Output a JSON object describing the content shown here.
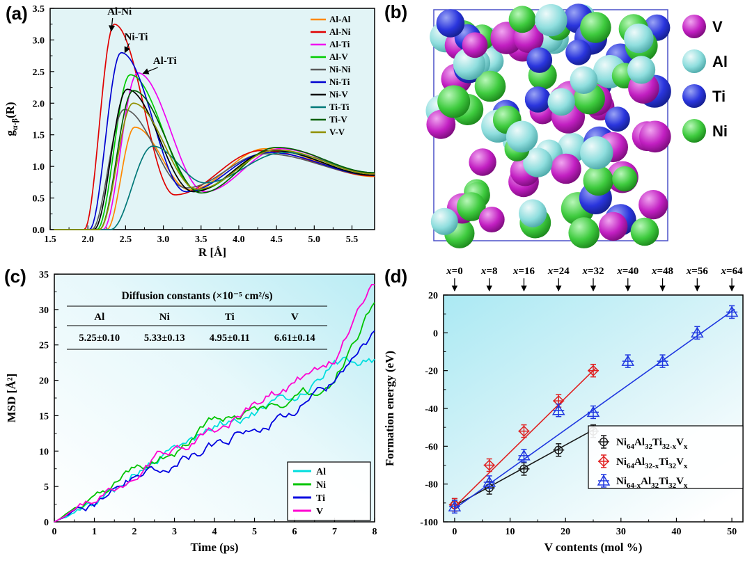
{
  "figure": {
    "panel_labels": {
      "a": "(a)",
      "b": "(b)",
      "c": "(c)",
      "d": "(d)"
    }
  },
  "chart_data": [
    {
      "panel": "a",
      "type": "line",
      "xlabel": "R [Å]",
      "ylabel_parts": [
        [
          "g",
          ""
        ],
        [
          "",
          "α-β"
        ],
        [
          "(R)",
          ""
        ]
      ],
      "xlim": [
        1.5,
        5.8
      ],
      "ylim": [
        0,
        3.5
      ],
      "xticks": [
        1.5,
        2.0,
        2.5,
        3.0,
        3.5,
        4.0,
        4.5,
        5.0,
        5.5
      ],
      "yticks": [
        0.0,
        0.5,
        1.0,
        1.5,
        2.0,
        2.5,
        3.0,
        3.5
      ],
      "annotations": [
        {
          "text": "Al-Ni",
          "tx": 2.42,
          "ty": 3.4,
          "ax": 2.31,
          "ay": 3.14
        },
        {
          "text": "Ni-Ti",
          "tx": 2.64,
          "ty": 3.0,
          "ax": 2.49,
          "ay": 2.8
        },
        {
          "text": "Al-Ti",
          "tx": 3.02,
          "ty": 2.62,
          "ax": 2.73,
          "ay": 2.47
        }
      ],
      "series": [
        {
          "name": "Al-Al",
          "color": "#ff8800",
          "anchors": [
            [
              2.25,
              0
            ],
            [
              2.62,
              1.62
            ],
            [
              3.35,
              0.63
            ],
            [
              4.35,
              1.28
            ],
            [
              5.8,
              0.84
            ]
          ]
        },
        {
          "name": "Al-Ni",
          "color": "#e00000",
          "anchors": [
            [
              1.95,
              0
            ],
            [
              2.35,
              3.25
            ],
            [
              3.15,
              0.55
            ],
            [
              4.3,
              1.25
            ],
            [
              5.8,
              0.85
            ]
          ]
        },
        {
          "name": "Al-Ti",
          "color": "#f000f0",
          "anchors": [
            [
              2.2,
              0
            ],
            [
              2.66,
              2.48
            ],
            [
              3.55,
              0.6
            ],
            [
              4.55,
              1.28
            ],
            [
              5.8,
              0.88
            ]
          ]
        },
        {
          "name": "Al-V",
          "color": "#00cc00",
          "anchors": [
            [
              2.12,
              0
            ],
            [
              2.56,
              2.45
            ],
            [
              3.45,
              0.62
            ],
            [
              4.45,
              1.25
            ],
            [
              5.8,
              0.86
            ]
          ]
        },
        {
          "name": "Ni-Ni",
          "color": "#5a5a5a",
          "anchors": [
            [
              2.05,
              0
            ],
            [
              2.48,
              1.9
            ],
            [
              3.3,
              0.66
            ],
            [
              4.35,
              1.2
            ],
            [
              5.8,
              0.86
            ]
          ]
        },
        {
          "name": "Ni-Ti",
          "color": "#0000d0",
          "anchors": [
            [
              2.02,
              0
            ],
            [
              2.44,
              2.8
            ],
            [
              3.3,
              0.6
            ],
            [
              4.4,
              1.22
            ],
            [
              5.8,
              0.86
            ]
          ]
        },
        {
          "name": "Ni-V",
          "color": "#000000",
          "anchors": [
            [
              2.08,
              0
            ],
            [
              2.52,
              2.22
            ],
            [
              3.4,
              0.6
            ],
            [
              4.45,
              1.25
            ],
            [
              5.8,
              0.86
            ]
          ]
        },
        {
          "name": "Ti-Ti",
          "color": "#007878",
          "anchors": [
            [
              2.3,
              0
            ],
            [
              2.86,
              1.32
            ],
            [
              3.55,
              0.74
            ],
            [
              4.6,
              1.22
            ],
            [
              5.8,
              0.9
            ]
          ]
        },
        {
          "name": "Ti-V",
          "color": "#005f00",
          "anchors": [
            [
              2.15,
              0
            ],
            [
              2.6,
              2.2
            ],
            [
              3.5,
              0.58
            ],
            [
              4.5,
              1.3
            ],
            [
              5.8,
              0.9
            ]
          ]
        },
        {
          "name": "V-V",
          "color": "#909000",
          "anchors": [
            [
              2.15,
              0
            ],
            [
              2.6,
              2.0
            ],
            [
              3.45,
              0.64
            ],
            [
              4.5,
              1.26
            ],
            [
              5.8,
              0.88
            ]
          ]
        }
      ]
    },
    {
      "panel": "b",
      "type": "atomic-structure",
      "legend": [
        {
          "label": "V",
          "species": "V",
          "color": "#c21fc2"
        },
        {
          "label": "Al",
          "species": "Al",
          "color": "#8fdede"
        },
        {
          "label": "Ti",
          "species": "Ti",
          "color": "#2a35dd"
        },
        {
          "label": "Ni",
          "species": "Ni",
          "color": "#3ecb3e"
        }
      ],
      "counts": {
        "V": 26,
        "Al": 24,
        "Ti": 18,
        "Ni": 27
      },
      "seed": 11
    },
    {
      "panel": "c",
      "type": "line",
      "xlabel": "Time (ps)",
      "ylabel": "MSD [Å²]",
      "xlim": [
        0,
        8
      ],
      "ylim": [
        0,
        35
      ],
      "xticks": [
        0,
        1,
        2,
        3,
        4,
        5,
        6,
        7,
        8
      ],
      "yticks": [
        0,
        5,
        10,
        15,
        20,
        25,
        30,
        35
      ],
      "table": {
        "title": "Diffusion constants (×10⁻⁵ cm²/s)",
        "headers": [
          "Al",
          "Ni",
          "Ti",
          "V"
        ],
        "values": [
          "5.25±0.10",
          "5.33±0.13",
          "4.95±0.11",
          "6.61±0.14"
        ]
      },
      "noise_seed": 5,
      "series": [
        {
          "name": "Al",
          "color": "#00dede",
          "anchors": [
            [
              0,
              0
            ],
            [
              1,
              2.5
            ],
            [
              2,
              7.0
            ],
            [
              3,
              10.0
            ],
            [
              4,
              13.5
            ],
            [
              5,
              15.5
            ],
            [
              6,
              17.5
            ],
            [
              7,
              22.5
            ],
            [
              8,
              23.0
            ]
          ]
        },
        {
          "name": "Ni",
          "color": "#00c400",
          "anchors": [
            [
              0,
              0
            ],
            [
              1,
              2.6
            ],
            [
              2,
              7.3
            ],
            [
              3,
              10.0
            ],
            [
              4,
              14.0
            ],
            [
              5,
              15.8
            ],
            [
              6,
              17.5
            ],
            [
              7,
              20.0
            ],
            [
              8,
              31.0
            ]
          ]
        },
        {
          "name": "Ti",
          "color": "#0000e0",
          "anchors": [
            [
              0,
              0
            ],
            [
              1,
              2.4
            ],
            [
              2,
              6.8
            ],
            [
              3,
              8.5
            ],
            [
              4,
              11.0
            ],
            [
              5,
              13.5
            ],
            [
              6,
              16.0
            ],
            [
              7,
              19.5
            ],
            [
              8,
              27.0
            ]
          ]
        },
        {
          "name": "V",
          "color": "#ff00d0",
          "anchors": [
            [
              0,
              0
            ],
            [
              1,
              2.5
            ],
            [
              2,
              7.0
            ],
            [
              3,
              10.5
            ],
            [
              4,
              13.2
            ],
            [
              5,
              16.5
            ],
            [
              6,
              19.5
            ],
            [
              7,
              23.0
            ],
            [
              8,
              33.5
            ]
          ]
        }
      ]
    },
    {
      "panel": "d",
      "type": "scatter",
      "xlabel": "V contents (mol %)",
      "ylabel": "Formation energy (eV)",
      "xlim": [
        -2,
        52
      ],
      "ylim": [
        -100,
        20
      ],
      "xticks": [
        0,
        10,
        20,
        30,
        40,
        50
      ],
      "yticks": [
        -100,
        -80,
        -60,
        -40,
        -20,
        0,
        20
      ],
      "top_labels": [
        {
          "label": "x=0",
          "mol": 0
        },
        {
          "label": "x=8",
          "mol": 6.25
        },
        {
          "label": "x=16",
          "mol": 12.5
        },
        {
          "label": "x=24",
          "mol": 18.75
        },
        {
          "label": "x=32",
          "mol": 25
        },
        {
          "label": "x=40",
          "mol": 31.25
        },
        {
          "label": "x=48",
          "mol": 37.5
        },
        {
          "label": "x=56",
          "mol": 43.75
        },
        {
          "label": "x=64",
          "mol": 50
        }
      ],
      "series": [
        {
          "label": "Ni64Al32Ti32-xVx",
          "label_parts": [
            [
              "Ni",
              "64"
            ],
            [
              "Al",
              "32"
            ],
            [
              "Ti",
              "32-x"
            ],
            [
              "V",
              "x"
            ]
          ],
          "color": "#1a1a1a",
          "marker": "circle",
          "x": [
            0,
            6.25,
            12.5,
            18.75,
            25
          ],
          "y": [
            -91,
            -82,
            -72,
            -62,
            -52
          ],
          "yerr": 2,
          "fit": [
            [
              0,
              -91.5
            ],
            [
              25.5,
              -50.5
            ]
          ]
        },
        {
          "label": "Ni64Al32-xTi32Vx",
          "label_parts": [
            [
              "Ni",
              "64"
            ],
            [
              "Al",
              "32-x"
            ],
            [
              "Ti",
              "32"
            ],
            [
              "V",
              "x"
            ]
          ],
          "color": "#e02020",
          "marker": "diamond",
          "x": [
            0,
            6.25,
            12.5,
            18.75,
            25
          ],
          "y": [
            -91,
            -70,
            -52,
            -36,
            -20
          ],
          "yerr": 2,
          "fit": [
            [
              0,
              -92
            ],
            [
              25.5,
              -18.5
            ]
          ]
        },
        {
          "label": "Ni64-xAl32Ti32Vx",
          "label_parts": [
            [
              "Ni",
              "64-x"
            ],
            [
              "Al",
              "32"
            ],
            [
              "Ti",
              "32"
            ],
            [
              "V",
              "x"
            ]
          ],
          "color": "#2038e0",
          "marker": "triangle",
          "x": [
            0,
            6.25,
            12.5,
            18.75,
            25,
            31.25,
            37.5,
            43.75,
            50
          ],
          "y": [
            -92,
            -79,
            -65,
            -41,
            -42,
            -15,
            -15,
            0,
            11
          ],
          "yerr": 2,
          "fit": [
            [
              0,
              -93
            ],
            [
              50.5,
              12.5
            ]
          ]
        }
      ]
    }
  ]
}
